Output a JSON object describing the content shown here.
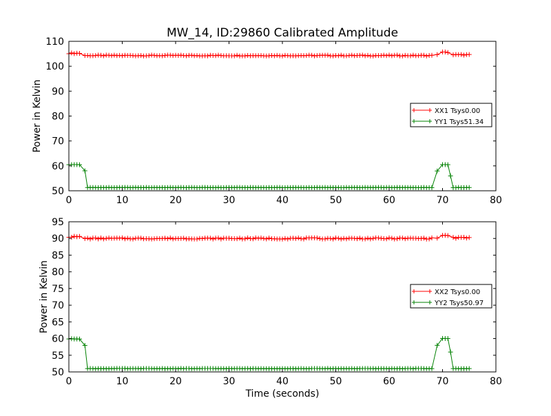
{
  "figure": {
    "title": "MW_14, ID:29860 Calibrated Amplitude",
    "xlabel": "Time (seconds)"
  },
  "chart_data": [
    {
      "type": "line",
      "title": "MW_14, ID:29860 Calibrated Amplitude",
      "xlabel": "",
      "ylabel": "Power in Kelvin",
      "xlim": [
        0,
        80
      ],
      "ylim": [
        50,
        110
      ],
      "xticks": [
        0,
        10,
        20,
        30,
        40,
        50,
        60,
        70,
        80
      ],
      "yticks": [
        50,
        60,
        70,
        80,
        90,
        100,
        110
      ],
      "grid": false,
      "legend_position": "center-right",
      "series": [
        {
          "name": "XX1 Tsys0.00",
          "color": "#ff0000",
          "marker": "plus",
          "segments": [
            {
              "x0": 0,
              "x1": 2,
              "y": 105.2
            },
            {
              "x0": 3,
              "x1": 68,
              "y": 104.3
            },
            {
              "x0": 69,
              "x1": 69,
              "y": 104.8
            },
            {
              "x0": 70,
              "x1": 71,
              "y": 105.6
            },
            {
              "x0": 72,
              "x1": 75,
              "y": 104.6
            }
          ]
        },
        {
          "name": "YY1 Tsys51.34",
          "color": "#008000",
          "marker": "plus",
          "segments": [
            {
              "x0": 0,
              "x1": 2,
              "y": 60.5
            },
            {
              "x0": 3,
              "x1": 3,
              "y": 58.0
            },
            {
              "x0": 3.5,
              "x1": 68,
              "y": 51.3
            },
            {
              "x0": 69,
              "x1": 69,
              "y": 58.0
            },
            {
              "x0": 70,
              "x1": 71,
              "y": 60.5
            },
            {
              "x0": 71.5,
              "x1": 71.5,
              "y": 56.0
            },
            {
              "x0": 72,
              "x1": 75,
              "y": 51.3
            }
          ]
        }
      ]
    },
    {
      "type": "line",
      "title": "",
      "xlabel": "Time (seconds)",
      "ylabel": "Power in Kelvin",
      "xlim": [
        0,
        80
      ],
      "ylim": [
        50,
        95
      ],
      "xticks": [
        0,
        10,
        20,
        30,
        40,
        50,
        60,
        70,
        80
      ],
      "yticks": [
        50,
        55,
        60,
        65,
        70,
        75,
        80,
        85,
        90,
        95
      ],
      "grid": false,
      "legend_position": "center-right",
      "series": [
        {
          "name": "XX2 Tsys0.00",
          "color": "#ff0000",
          "marker": "plus",
          "segments": [
            {
              "x0": 0,
              "x1": 2,
              "y": 90.5
            },
            {
              "x0": 3,
              "x1": 68,
              "y": 90.0
            },
            {
              "x0": 69,
              "x1": 69,
              "y": 90.2
            },
            {
              "x0": 70,
              "x1": 71,
              "y": 90.9
            },
            {
              "x0": 72,
              "x1": 75,
              "y": 90.2
            }
          ]
        },
        {
          "name": "YY2 Tsys50.97",
          "color": "#008000",
          "marker": "plus",
          "segments": [
            {
              "x0": 0,
              "x1": 2,
              "y": 59.9
            },
            {
              "x0": 3,
              "x1": 3,
              "y": 58.0
            },
            {
              "x0": 3.5,
              "x1": 68,
              "y": 51.0
            },
            {
              "x0": 69,
              "x1": 69,
              "y": 58.0
            },
            {
              "x0": 70,
              "x1": 71,
              "y": 60.0
            },
            {
              "x0": 71.5,
              "x1": 71.5,
              "y": 56.0
            },
            {
              "x0": 72,
              "x1": 75,
              "y": 51.0
            }
          ]
        }
      ]
    }
  ]
}
